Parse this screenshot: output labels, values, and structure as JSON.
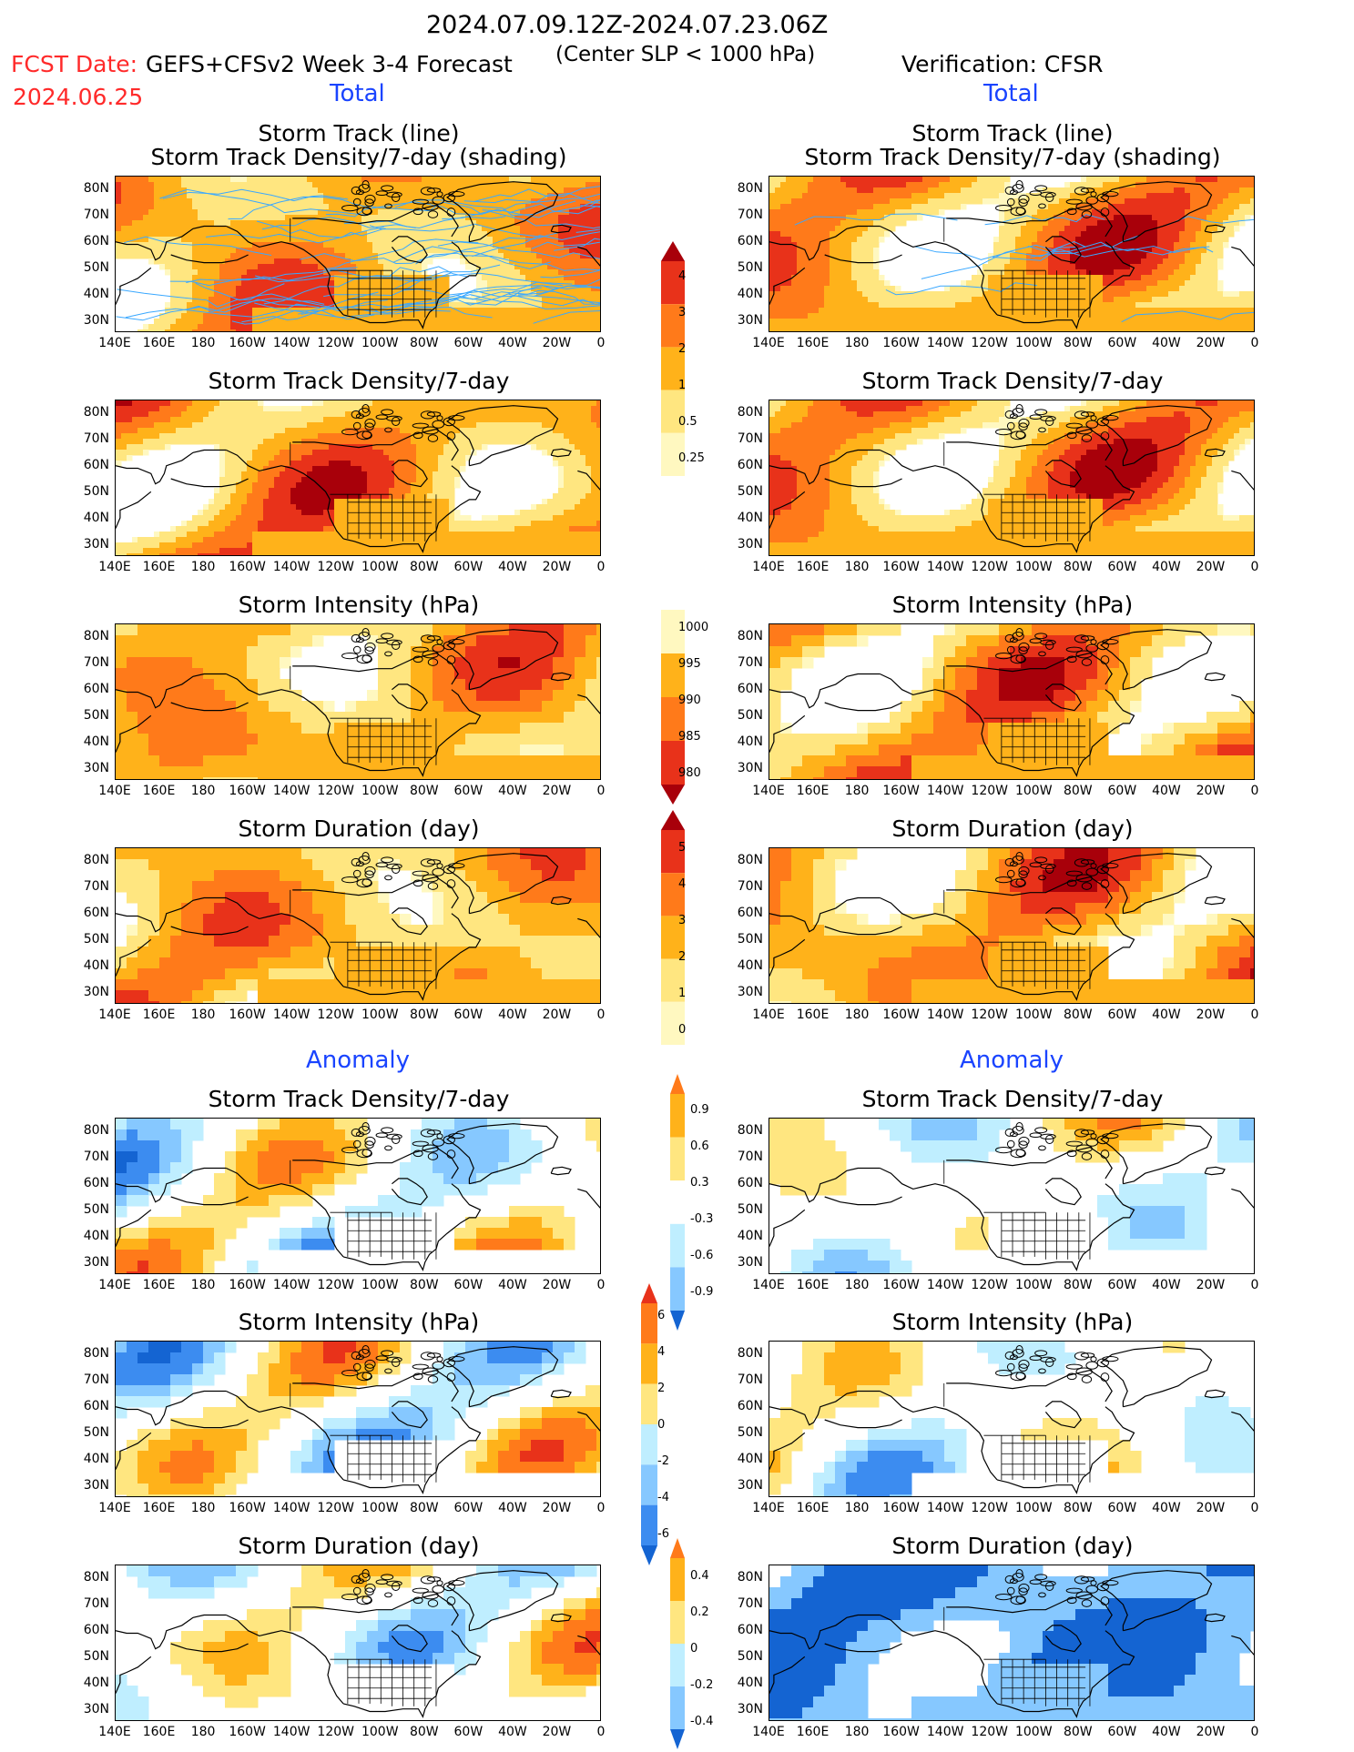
{
  "header": {
    "date_range": "2024.07.09.12Z-2024.07.23.06Z",
    "criterion": "(Center SLP < 1000 hPa)",
    "fcst_label": "FCST Date:",
    "fcst_date": "2024.06.25",
    "model": "GEFS+CFSv2 Week 3-4 Forecast",
    "verification": "Verification: CFSR"
  },
  "sections": {
    "total": "Total",
    "anomaly": "Anomaly"
  },
  "titles": {
    "track_line": "Storm Track (line)",
    "track_shading": "Storm Track Density/7-day (shading)",
    "density": "Storm Track Density/7-day",
    "intensity": "Storm Intensity (hPa)",
    "duration": "Storm Duration (day)"
  },
  "axes": {
    "lat_labels": [
      "80N",
      "70N",
      "60N",
      "50N",
      "40N",
      "30N"
    ],
    "lon_labels": [
      "140E",
      "160E",
      "180",
      "160W",
      "140W",
      "120W",
      "100W",
      "80W",
      "60W",
      "40W",
      "20W",
      "0"
    ]
  },
  "colorbars": {
    "density_total": [
      "4",
      "3",
      "2",
      "1",
      "0.5",
      "0.25"
    ],
    "intensity_total": [
      "1000",
      "995",
      "990",
      "985",
      "980"
    ],
    "duration_total": [
      "5",
      "4",
      "3",
      "2",
      "1",
      "0"
    ],
    "density_anom": [
      "0.9",
      "0.6",
      "0.3",
      "-0.3",
      "-0.6",
      "-0.9"
    ],
    "intensity_anom": [
      "6",
      "4",
      "2",
      "0",
      "-2",
      "-4",
      "-6"
    ],
    "duration_anom": [
      "0.4",
      "0.2",
      "0",
      "-0.2",
      "-0.4"
    ]
  },
  "palette": {
    "warm": [
      "#fff8c0",
      "#ffe680",
      "#ffb21a",
      "#ff7a1a",
      "#e8321a",
      "#a8000a"
    ],
    "cool": [
      "#bfeeff",
      "#86c8ff",
      "#3c8cf0",
      "#1464d2"
    ],
    "track_line": "#3aa8ff"
  }
}
